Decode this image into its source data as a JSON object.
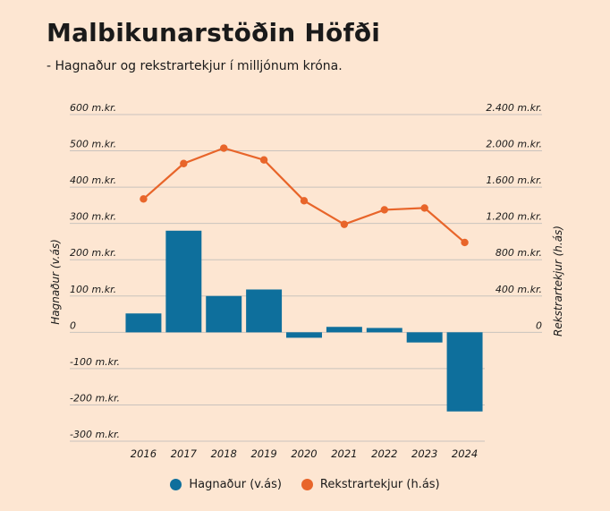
{
  "title": "Malbikunarstöðin Höfði",
  "subtitle": "- Hagnaður og rekstrartekjur í milljónum króna.",
  "colors": {
    "background": "#fde6d2",
    "bars": "#0e6f9c",
    "line": "#e8652a",
    "grid": "#c9c3bd"
  },
  "chart_data": {
    "type": "bar+line",
    "categories": [
      "2016",
      "2017",
      "2018",
      "2019",
      "2020",
      "2021",
      "2022",
      "2023",
      "2024"
    ],
    "left_axis": {
      "label": "Hagnaður (v.ás)",
      "range": [
        -300,
        600
      ],
      "ticks": [
        600,
        500,
        400,
        300,
        200,
        100,
        0,
        -100,
        -200,
        -300
      ],
      "tick_labels": [
        "600 m.kr.",
        "500 m.kr.",
        "400 m.kr.",
        "300 m.kr.",
        "200 m.kr.",
        "100 m.kr.",
        "0",
        "-100 m.kr.",
        "-200 m.kr.",
        "-300 m.kr."
      ]
    },
    "right_axis": {
      "label": "Rekstrartekjur (h.ás)",
      "range": [
        0,
        2400
      ],
      "ticks": [
        2400,
        2000,
        1600,
        1200,
        800,
        400,
        0
      ],
      "tick_labels": [
        "2.400 m.kr.",
        "2.000 m.kr.",
        "1.600 m.kr.",
        "1.200 m.kr.",
        "800 m.kr.",
        "400 m.kr.",
        "0"
      ]
    },
    "series": [
      {
        "name": "Hagnaður (v.ás)",
        "kind": "bar",
        "axis": "left",
        "values": [
          52,
          280,
          100,
          118,
          -15,
          15,
          12,
          -28,
          -218
        ]
      },
      {
        "name": "Rekstrartekjur (h.ás)",
        "kind": "line",
        "axis": "right",
        "values": [
          1470,
          1860,
          2030,
          1900,
          1450,
          1190,
          1350,
          1370,
          990
        ]
      }
    ],
    "grid": true,
    "legend_position": "bottom-center"
  }
}
